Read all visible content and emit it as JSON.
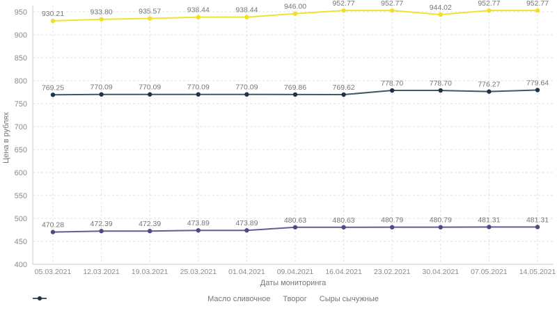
{
  "chart_data": {
    "type": "line",
    "xlabel": "Даты мониторинга",
    "ylabel": "Цена в рублях",
    "ylim": [
      400,
      950
    ],
    "ytick_step": 50,
    "grid": true,
    "legend_position": "bottom",
    "value_label_decimals": 2,
    "x": [
      "05.03.2021",
      "12.03.2021",
      "19.03.2021",
      "25.03.2021",
      "01.04.2021",
      "09.04.2021",
      "16.04.2021",
      "23.02.2021",
      "30.04.2021",
      "07.05.2021",
      "14.05.2021"
    ],
    "series": [
      {
        "name": "Масло сливочное",
        "color": "#f2e22e",
        "point_color": "#f0df2a",
        "values": [
          930.21,
          933.8,
          935.57,
          938.44,
          938.44,
          946.0,
          952.77,
          952.77,
          944.02,
          952.77,
          952.77
        ]
      },
      {
        "name": "Творог",
        "color": "#605d93",
        "point_color": "#4e4b80",
        "values": [
          470.28,
          472.39,
          472.39,
          473.89,
          473.89,
          480.63,
          480.63,
          480.79,
          480.79,
          481.31,
          481.31
        ]
      },
      {
        "name": "Сыры сычужные",
        "color": "#3d5a63",
        "point_color": "#1e3446",
        "values": [
          769.25,
          770.09,
          770.09,
          770.09,
          770.09,
          769.86,
          769.62,
          778.7,
          778.7,
          776.27,
          779.64
        ]
      }
    ]
  },
  "styles": {
    "background": "#ffffff",
    "grid_color": "#e2e2e2",
    "axis_color": "#cccccc",
    "tick_label_color": "#8b8b8b",
    "value_label_color": "#757575",
    "axis_title_color": "#757575",
    "legend_label_color": "#757575"
  }
}
